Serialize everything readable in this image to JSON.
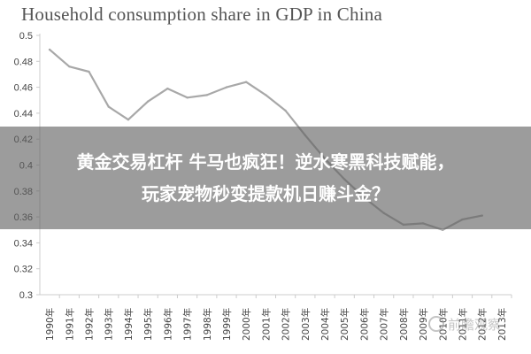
{
  "chart_data": {
    "type": "line",
    "title": "Household consumption share in GDP in China",
    "xlabel": "",
    "ylabel": "",
    "categories": [
      "1990年",
      "1991年",
      "1992年",
      "1993年",
      "1994年",
      "1995年",
      "1996年",
      "1997年",
      "1998年",
      "1999年",
      "2000年",
      "2001年",
      "2002年",
      "2003年",
      "2004年",
      "2005年",
      "2006年",
      "2007年",
      "2008年",
      "2009年",
      "2010年",
      "2011年",
      "2012年",
      "2013年"
    ],
    "series": [
      {
        "values": [
          0.489,
          0.476,
          0.472,
          0.445,
          0.435,
          0.449,
          0.459,
          0.452,
          0.454,
          0.46,
          0.464,
          0.454,
          0.442,
          0.423,
          0.405,
          0.389,
          0.375,
          0.363,
          0.354,
          0.355,
          0.35,
          0.358,
          0.361,
          null
        ]
      }
    ],
    "yticks": [
      "0.3",
      "0.32",
      "0.34",
      "0.36",
      "0.38",
      "0.4",
      "0.42",
      "0.44",
      "0.46",
      "0.48",
      "0.5"
    ],
    "ylim": [
      0.3,
      0.5
    ],
    "grid": false,
    "legend": "none",
    "line_color": "#a8a8a8",
    "axis_color": "#cccccc"
  },
  "overlay": {
    "line1": "黄金交易杠杆 牛马也疯狂！逆水寒黑科技赋能，",
    "line2": "玩家宠物秒变提款机日赚斗金？"
  },
  "watermark": {
    "text": "前瞻观察"
  }
}
